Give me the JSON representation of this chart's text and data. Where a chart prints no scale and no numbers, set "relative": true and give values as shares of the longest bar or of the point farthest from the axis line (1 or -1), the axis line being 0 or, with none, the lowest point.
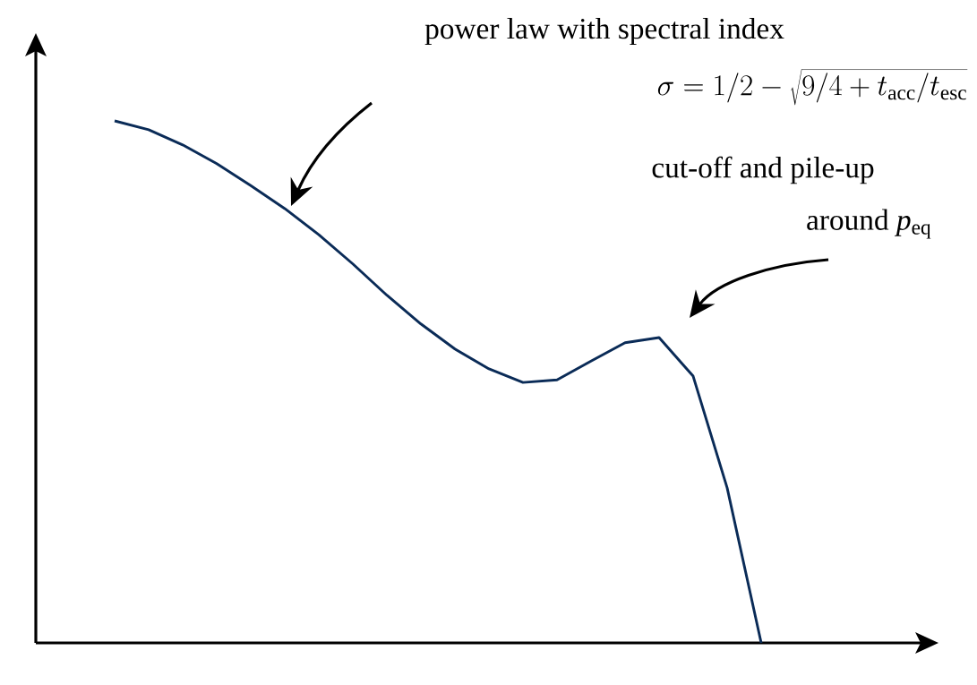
{
  "chart_data": {
    "type": "line",
    "relative": true,
    "color": "#0a2b57",
    "categories": [
      null,
      null,
      null,
      null,
      null,
      null,
      null,
      null,
      null,
      null,
      null,
      null,
      null,
      null,
      null,
      null,
      null,
      null,
      null,
      null
    ],
    "values": [
      1.0,
      0.983,
      0.954,
      0.918,
      0.876,
      0.832,
      0.782,
      0.726,
      0.666,
      0.611,
      0.563,
      0.525,
      0.499,
      0.504,
      0.54,
      0.575,
      0.585,
      0.511,
      0.297,
      0.0
    ],
    "annotations": [
      "power law with spectral index",
      "\\sigma = 1/2 - \\sqrt{9/4 + t_\\mathrm{acc}/t_\\mathrm{esc}}",
      "cut-off and pile-up",
      "around *p*$_{eq}$"
    ]
  }
}
